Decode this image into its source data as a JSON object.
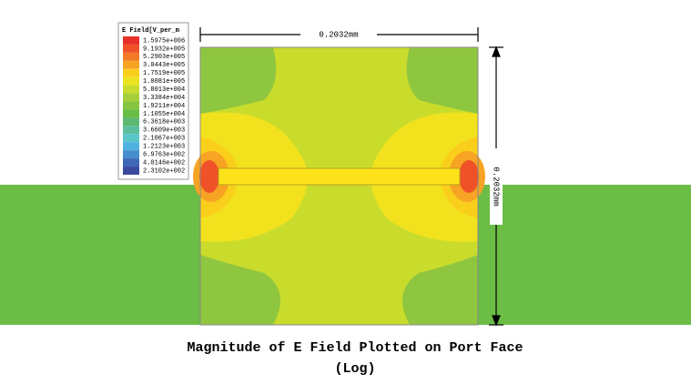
{
  "legend": {
    "title": "E Field[V_per_m",
    "entries": [
      {
        "label": "1.5975e+006",
        "color": "#e8302a"
      },
      {
        "label": "9.1932e+005",
        "color": "#ef5228"
      },
      {
        "label": "5.2903e+005",
        "color": "#f47a28"
      },
      {
        "label": "3.0443e+005",
        "color": "#f7a323"
      },
      {
        "label": "1.7519e+005",
        "color": "#f9cf1c"
      },
      {
        "label": "1.0081e+005",
        "color": "#e9e41f"
      },
      {
        "label": "5.8013e+004",
        "color": "#c9dc2c"
      },
      {
        "label": "3.3384e+004",
        "color": "#a6cf39"
      },
      {
        "label": "1.9211e+004",
        "color": "#86c540"
      },
      {
        "label": "1.1055e+004",
        "color": "#6abd45"
      },
      {
        "label": "6.3618e+003",
        "color": "#5db871"
      },
      {
        "label": "3.6609e+003",
        "color": "#5bbf9e"
      },
      {
        "label": "2.1067e+003",
        "color": "#58c5c8"
      },
      {
        "label": "1.2123e+003",
        "color": "#4fb1df"
      },
      {
        "label": "6.9763e+002",
        "color": "#478ccf"
      },
      {
        "label": "4.0146e+002",
        "color": "#3e67b6"
      },
      {
        "label": "2.3102e+002",
        "color": "#3a4a9f"
      }
    ]
  },
  "dimensions": {
    "width": "0.2032mm",
    "height": "0.2032mm"
  },
  "caption": {
    "line1": "Magnitude of E Field Plotted on Port Face",
    "line2": "(Log)"
  }
}
